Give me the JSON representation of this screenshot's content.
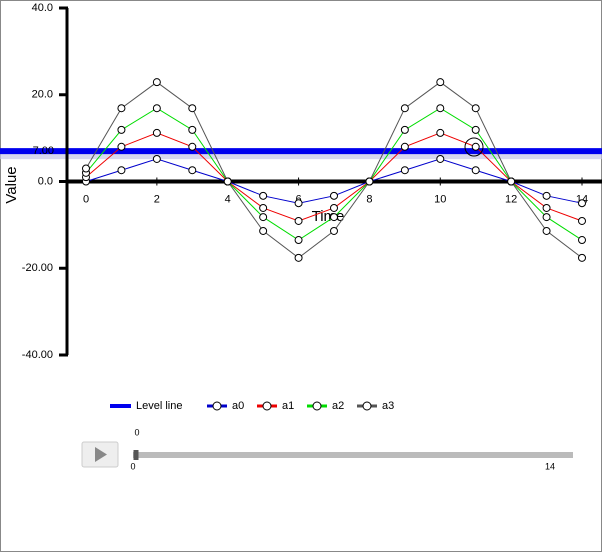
{
  "chart_data": {
    "type": "line",
    "x_label": "Time",
    "y_label": "Value",
    "x": [
      0,
      1,
      2,
      3,
      4,
      5,
      6,
      7,
      8,
      9,
      10,
      11,
      12,
      13,
      14
    ],
    "series": [
      {
        "name": "a0",
        "color": "#0000cc",
        "values": [
          0,
          2.6,
          5.2,
          2.6,
          0,
          -3.3,
          -5.0,
          -3.3,
          0,
          2.6,
          5.2,
          2.6,
          0,
          -3.3,
          -5.0
        ]
      },
      {
        "name": "a1",
        "color": "#ee0000",
        "values": [
          1,
          8.0,
          11.2,
          8.0,
          0,
          -6.1,
          -9.1,
          -6.1,
          0,
          8.0,
          11.2,
          8.0,
          0,
          -6.1,
          -9.1
        ]
      },
      {
        "name": "a2",
        "color": "#00dd00",
        "values": [
          2,
          11.9,
          16.9,
          11.9,
          0,
          -8.2,
          -13.5,
          -8.2,
          0,
          11.9,
          16.9,
          11.9,
          0,
          -8.2,
          -13.5
        ]
      },
      {
        "name": "a3",
        "color": "#555555",
        "values": [
          3,
          16.9,
          22.9,
          16.9,
          0,
          -11.4,
          -17.6,
          -11.4,
          0,
          16.9,
          22.9,
          16.9,
          0,
          -11.4,
          -17.6
        ]
      }
    ],
    "level_line": {
      "name": "Level line",
      "value": 7,
      "label": "7.00",
      "color": "#0000ee"
    },
    "xlim": [
      0,
      14
    ],
    "xticks": [
      0,
      2,
      4,
      6,
      8,
      10,
      12,
      14
    ],
    "ylim": [
      -40,
      40
    ],
    "yticks": [
      {
        "value": 40,
        "label": "40.0"
      },
      {
        "value": 20,
        "label": "20.0"
      },
      {
        "value": 0,
        "label": "0.0"
      },
      {
        "value": -20,
        "label": "-20.00"
      },
      {
        "value": -40,
        "label": "-40.00"
      }
    ]
  },
  "slider": {
    "value": 0,
    "min": 0,
    "max": 14
  }
}
